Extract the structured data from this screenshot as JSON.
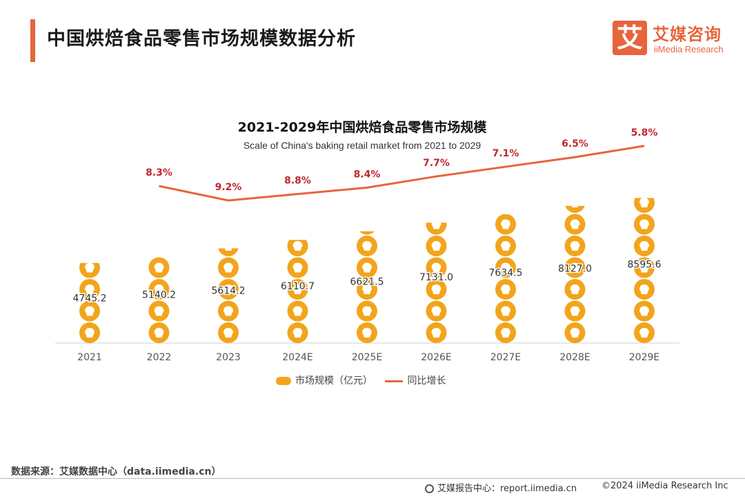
{
  "header": {
    "title": "中国烘焙食品零售市场规模数据分析",
    "logo_mark": "艾",
    "logo_cn": "艾媒咨询",
    "logo_en": "iiMedia Research"
  },
  "colors": {
    "accent": "#e8643c",
    "bar_fill": "#f3a41b",
    "growth_label": "#c0272d",
    "line": "#e8643c"
  },
  "chart_data": {
    "type": "bar",
    "bar_style": "stacked cupcake-icon circles (pictogram bars)",
    "title": "2021-2029年中国烘焙食品零售市场规模",
    "subtitle": "Scale of China's baking retail market from 2021 to 2029",
    "categories": [
      "2021",
      "2022",
      "2023",
      "2024E",
      "2025E",
      "2026E",
      "2027E",
      "2028E",
      "2029E"
    ],
    "series": [
      {
        "name": "市场规模（亿元）",
        "type": "bar",
        "values": [
          4745.2,
          5140.2,
          5614.2,
          6110.7,
          6621.5,
          7131.0,
          7634.5,
          8127.0,
          8595.6
        ],
        "labels": [
          "4745.2",
          "5140.2",
          "5614.2",
          "6110.7",
          "6621.5",
          "7131.0",
          "7634.5",
          "8127.0",
          "8595.6"
        ]
      },
      {
        "name": "同比增长",
        "type": "line",
        "values": [
          null,
          8.3,
          9.2,
          8.8,
          8.4,
          7.7,
          7.1,
          6.5,
          5.8
        ],
        "labels": [
          "",
          "8.3%",
          "9.2%",
          "8.8%",
          "8.4%",
          "7.7%",
          "7.1%",
          "6.5%",
          "5.8%"
        ]
      }
    ],
    "legend": [
      "市场规模（亿元）",
      "同比增长"
    ],
    "legend_position": "bottom-center",
    "grid": false
  },
  "footer": {
    "source": "数据来源：艾媒数据中心（data.iimedia.cn）",
    "report": "艾媒报告中心：report.iimedia.cn",
    "copyright": "©2024 iiMedia Research Inc"
  }
}
